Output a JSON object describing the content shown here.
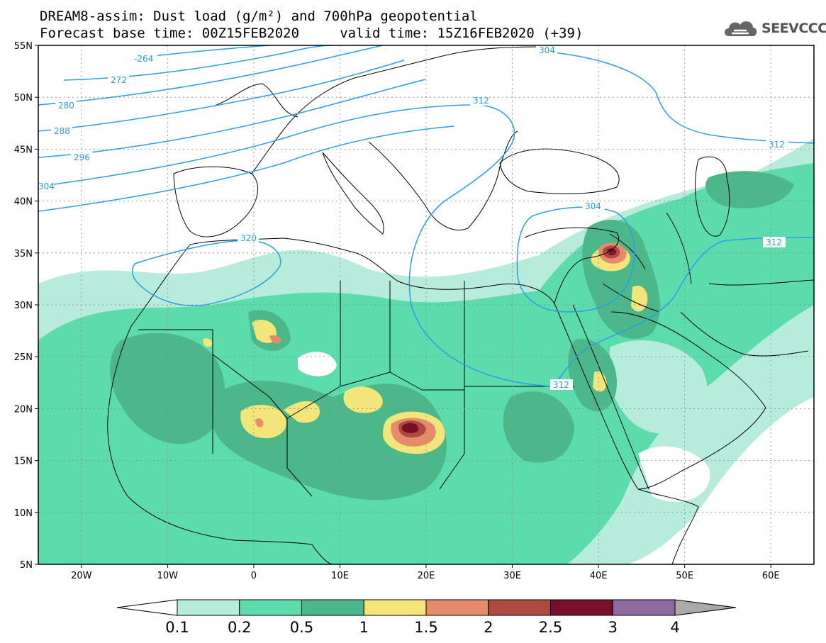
{
  "title": {
    "line1": "DREAM8-assim: Dust load (g/m²) and 700hPa geopotential",
    "line2": "Forecast base time: 00Z15FEB2020     valid time: 15Z16FEB2020 (+39)"
  },
  "logo": {
    "text": "SEEVCCC",
    "icon": "cloud-icon"
  },
  "axes": {
    "lat_labels": [
      "55N",
      "50N",
      "45N",
      "40N",
      "35N",
      "30N",
      "25N",
      "20N",
      "15N",
      "10N",
      "5N"
    ],
    "lon_labels": [
      "20W",
      "10W",
      "0",
      "10E",
      "20E",
      "30E",
      "40E",
      "50E",
      "60E"
    ],
    "lat_range": [
      5,
      55
    ],
    "lon_range": [
      -25,
      65
    ]
  },
  "contours": {
    "labels": [
      "-264",
      "272",
      "280",
      "288",
      "296",
      "304",
      "312",
      "304",
      "320",
      "312",
      "304",
      "312",
      "312"
    ]
  },
  "colorbar": {
    "tick_labels": [
      "0.1",
      "0.2",
      "0.5",
      "1",
      "1.5",
      "2",
      "2.5",
      "3",
      "4"
    ],
    "colors": [
      "#b7ecdc",
      "#5cdcac",
      "#4cb889",
      "#f2e57a",
      "#e68c6a",
      "#b04a3e",
      "#7a0f2c",
      "#8e6aa0",
      "#aaaaaa"
    ]
  }
}
